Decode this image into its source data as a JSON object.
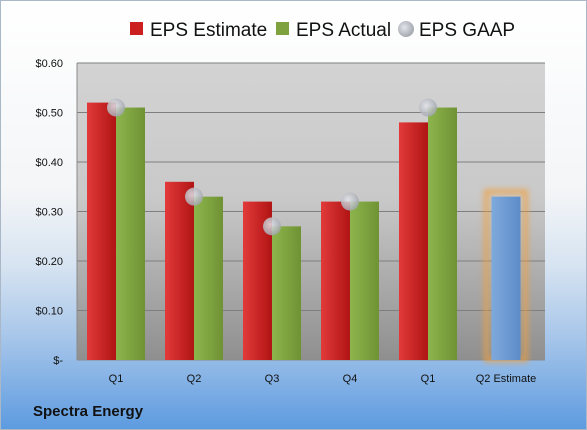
{
  "company": "Spectra Energy",
  "chart_data": {
    "type": "bar",
    "categories": [
      "Q1",
      "Q2",
      "Q3",
      "Q4",
      "Q1",
      "Q2 Estimate"
    ],
    "series": [
      {
        "name": "EPS Estimate",
        "color": "#cc1f1f",
        "values": [
          0.52,
          0.36,
          0.32,
          0.32,
          0.48,
          null
        ]
      },
      {
        "name": "EPS Actual",
        "color": "#7fa23f",
        "values": [
          0.51,
          0.33,
          0.27,
          0.32,
          0.51,
          0.33
        ]
      },
      {
        "name": "EPS GAAP",
        "color": "#b8bcc4",
        "marker": "circle",
        "values": [
          0.51,
          0.33,
          0.27,
          0.32,
          0.51,
          null
        ]
      }
    ],
    "highlight": {
      "category": "Q2 Estimate",
      "value": 0.33,
      "color": "#6e9bd2",
      "glow": "#f0a040"
    },
    "ylim": [
      0,
      0.6
    ],
    "yticks": [
      "$-",
      "$0.10",
      "$0.20",
      "$0.30",
      "$0.40",
      "$0.50",
      "$0.60"
    ],
    "grid": true,
    "legend_position": "top"
  }
}
